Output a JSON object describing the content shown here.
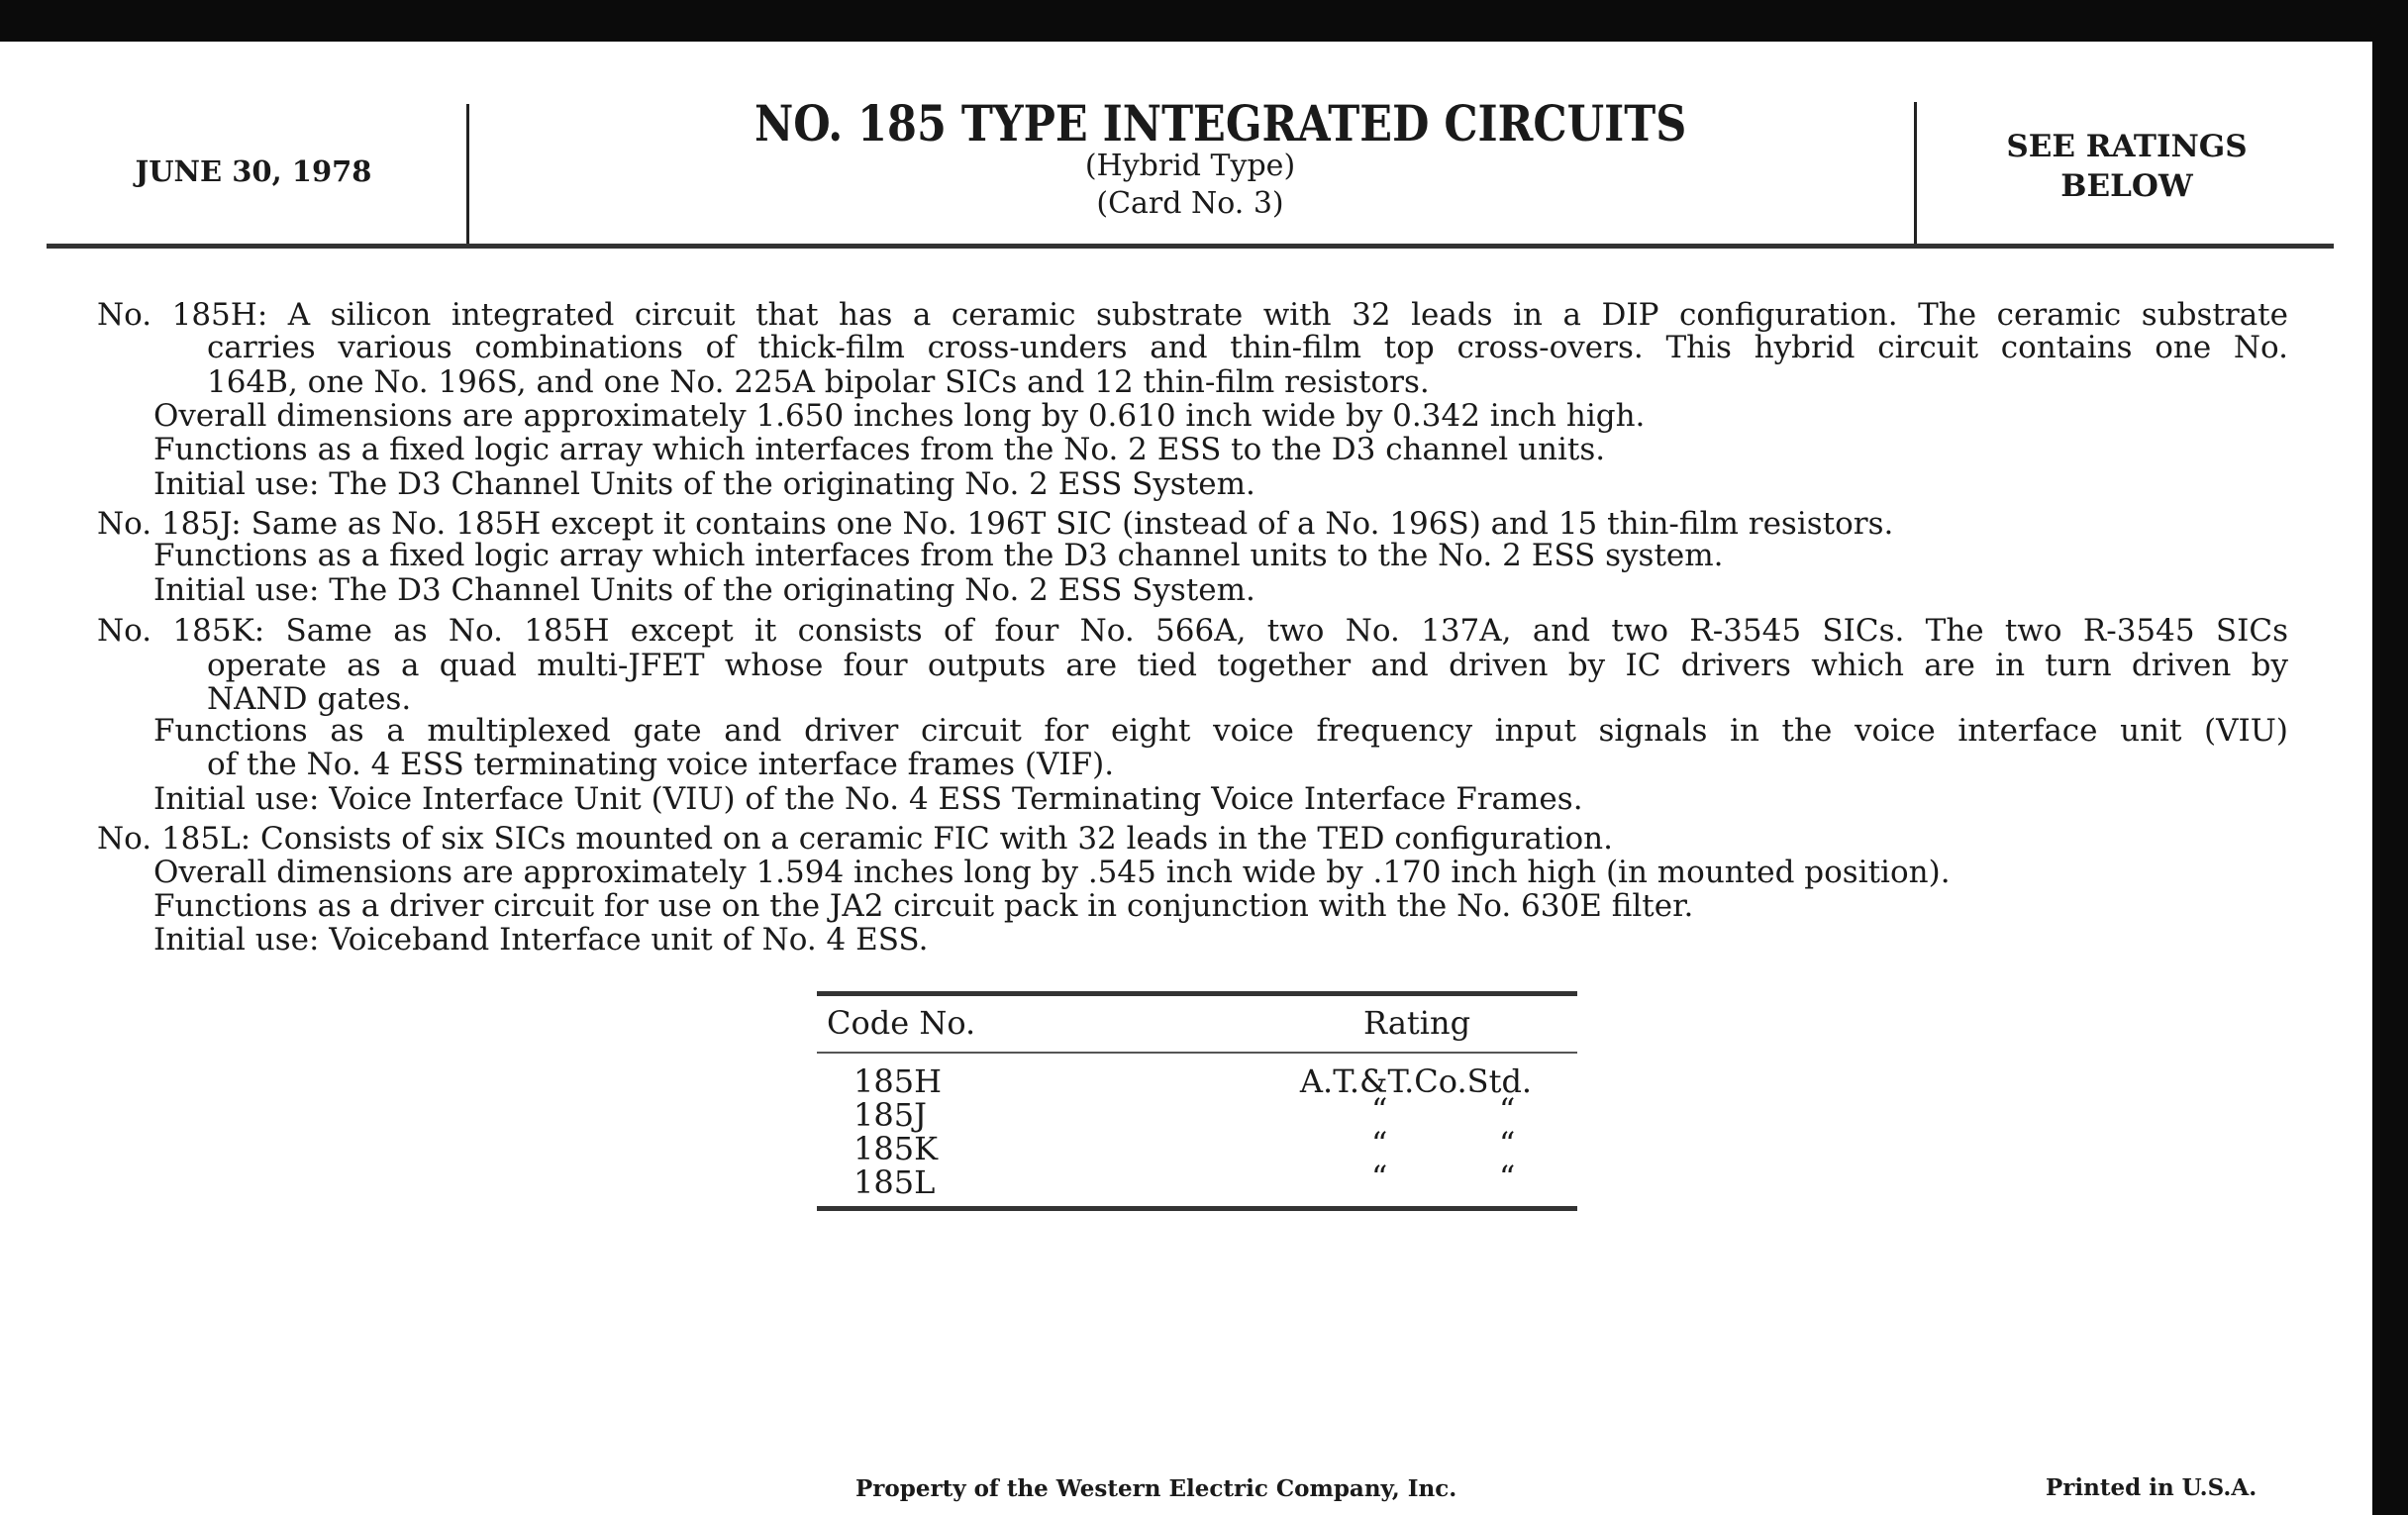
{
  "header": {
    "date": "JUNE 30, 1978",
    "title": "NO. 185 TYPE INTEGRATED CIRCUITS",
    "subtitle1": "(Hybrid Type)",
    "subtitle2": "(Card No. 3)",
    "ratings_note_line1": "SEE RATINGS",
    "ratings_note_line2": "BELOW"
  },
  "body": {
    "h": [
      "No. 185H: A silicon integrated circuit that has a ceramic substrate with 32 leads in a DIP configuration. The ceramic substrate",
      "carries various combinations of thick-film cross-unders and thin-film top cross-overs. This hybrid circuit contains one No.",
      "164B, one No. 196S, and one No. 225A bipolar SICs and 12 thin-film resistors.",
      "Overall dimensions are approximately 1.650 inches long by 0.610 inch wide by 0.342 inch high.",
      "Functions as a fixed logic array which interfaces from the No. 2 ESS to the D3 channel units.",
      "Initial use:  The D3 Channel Units of the originating No. 2 ESS System."
    ],
    "j": [
      "No. 185J:  Same as No. 185H except it contains one No. 196T SIC (instead of a No. 196S) and 15 thin-film resistors.",
      "Functions as a fixed logic array which interfaces from the D3 channel units to the No. 2 ESS system.",
      "Initial use:  The D3 Channel Units of the originating No. 2 ESS System."
    ],
    "k": [
      "No. 185K:  Same as No. 185H except it consists of four No. 566A, two No. 137A, and two R-3545 SICs.  The two R-3545 SICs",
      "operate as a quad multi-JFET whose four outputs are tied together and driven by IC drivers which are in turn driven by",
      "NAND gates.",
      "Functions as a multiplexed gate and driver circuit for eight voice frequency input signals in the voice interface unit (VIU)",
      "of the No. 4 ESS terminating voice interface frames (VIF).",
      "Initial use:  Voice Interface Unit (VIU) of the No. 4 ESS Terminating Voice Interface Frames."
    ],
    "l": [
      "No. 185L: Consists of six SICs mounted on a ceramic FIC with 32 leads in the TED configuration.",
      "Overall dimensions are approximately 1.594 inches long by .545 inch wide by .170 inch high (in mounted position).",
      "Functions as a driver circuit for use on the JA2 circuit pack in conjunction with the No. 630E filter.",
      "Initial use:  Voiceband Interface unit of No. 4 ESS."
    ]
  },
  "table": {
    "headers": [
      "Code No.",
      "Rating"
    ],
    "rows": [
      {
        "code": "185H",
        "rating": "A.T.&T.Co.Std.",
        "ditto": [
          "",
          ""
        ]
      },
      {
        "code": "185J",
        "rating": "",
        "ditto": [
          "“",
          "“"
        ]
      },
      {
        "code": "185K",
        "rating": "",
        "ditto": [
          "“",
          "“"
        ]
      },
      {
        "code": "185L",
        "rating": "",
        "ditto": [
          "“",
          "“"
        ]
      }
    ]
  },
  "footer": {
    "property": "Property of the Western Electric Company, Inc.",
    "printed": "Printed in U.S.A."
  }
}
